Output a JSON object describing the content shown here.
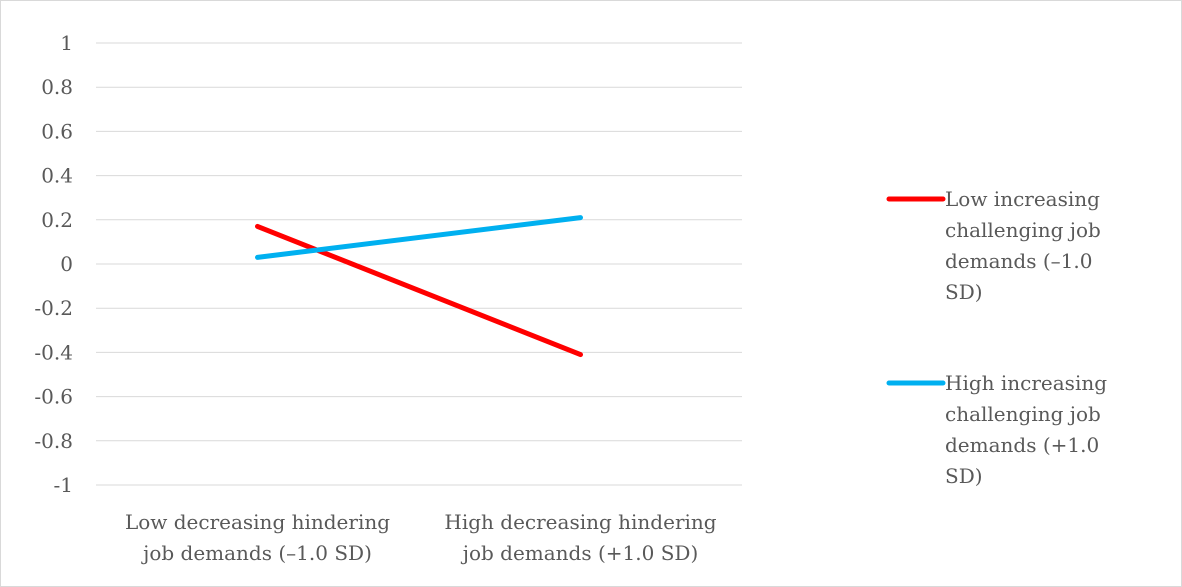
{
  "chart_data": {
    "type": "line",
    "categories": [
      [
        "Low decreasing hindering",
        "job demands (–1.0 SD)"
      ],
      [
        "High decreasing hindering",
        "job demands (+1.0 SD)"
      ]
    ],
    "series": [
      {
        "name": [
          "Low increasing",
          "challenging job",
          "demands (–1.0",
          "SD)"
        ],
        "values": [
          0.17,
          -0.41
        ],
        "color": "#ff0000"
      },
      {
        "name": [
          "High increasing",
          "challenging job",
          "demands (+1.0",
          "SD)"
        ],
        "values": [
          0.03,
          0.21
        ],
        "color": "#00b0f0"
      }
    ],
    "yticks": [
      "1",
      "0.8",
      "0.6",
      "0.4",
      "0.2",
      "0",
      "-0.2",
      "-0.4",
      "-0.6",
      "-0.8",
      "-1"
    ],
    "ylim": [
      -1,
      1
    ],
    "grid": true,
    "legend_position": "right"
  }
}
